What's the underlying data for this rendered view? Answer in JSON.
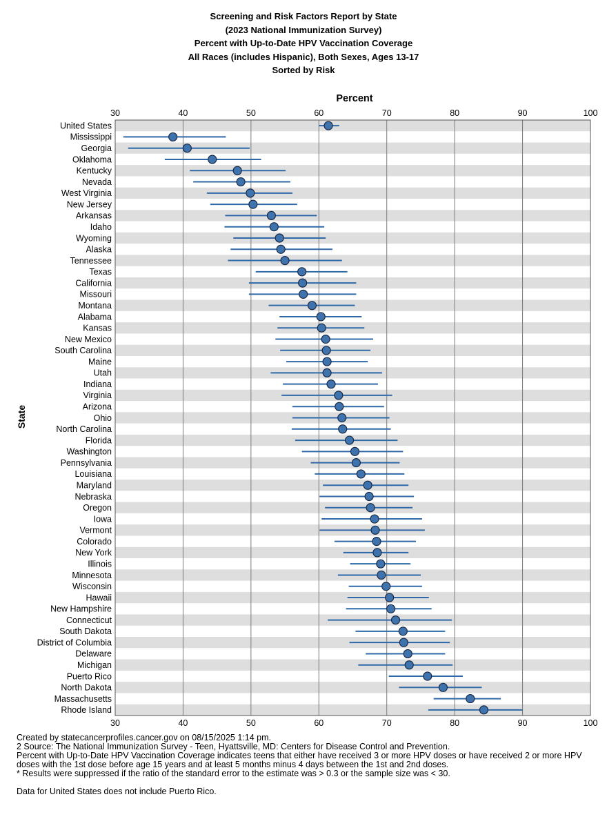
{
  "title_lines": [
    "Screening and Risk Factors Report by State",
    "(2023 National Immunization Survey)",
    "Percent with Up-to-Date HPV Vaccination Coverage",
    "All Races (includes Hispanic), Both Sexes, Ages 13-17",
    "Sorted by Risk"
  ],
  "chart_data": {
    "type": "scatter",
    "title": "Screening and Risk Factors Report by State",
    "xlabel": "Percent",
    "ylabel": "State",
    "xlim": [
      30,
      100
    ],
    "xticks": [
      30,
      40,
      50,
      60,
      70,
      80,
      90,
      100
    ],
    "grid": true,
    "point_color": "#3f73ad",
    "line_color": "#2f68a8",
    "band_color": "#dedede",
    "points": [
      {
        "label": "United States",
        "value": 61.4,
        "low": 60.0,
        "high": 63.0
      },
      {
        "label": "Mississippi",
        "value": 38.5,
        "low": 31.2,
        "high": 46.3
      },
      {
        "label": "Georgia",
        "value": 40.6,
        "low": 31.9,
        "high": 49.8
      },
      {
        "label": "Oklahoma",
        "value": 44.3,
        "low": 37.3,
        "high": 51.5
      },
      {
        "label": "Kentucky",
        "value": 48.0,
        "low": 41.0,
        "high": 55.1
      },
      {
        "label": "Nevada",
        "value": 48.5,
        "low": 41.5,
        "high": 55.8
      },
      {
        "label": "West Virginia",
        "value": 49.9,
        "low": 43.5,
        "high": 56.1
      },
      {
        "label": "New Jersey",
        "value": 50.3,
        "low": 44.0,
        "high": 56.8
      },
      {
        "label": "Arkansas",
        "value": 53.0,
        "low": 46.2,
        "high": 59.7
      },
      {
        "label": "Idaho",
        "value": 53.4,
        "low": 46.1,
        "high": 60.8
      },
      {
        "label": "Wyoming",
        "value": 54.2,
        "low": 47.4,
        "high": 61.0
      },
      {
        "label": "Alaska",
        "value": 54.4,
        "low": 47.0,
        "high": 62.0
      },
      {
        "label": "Tennessee",
        "value": 55.0,
        "low": 46.6,
        "high": 63.4
      },
      {
        "label": "Texas",
        "value": 57.5,
        "low": 50.7,
        "high": 64.2
      },
      {
        "label": "California",
        "value": 57.6,
        "low": 49.7,
        "high": 65.5
      },
      {
        "label": "Missouri",
        "value": 57.7,
        "low": 49.7,
        "high": 65.5
      },
      {
        "label": "Montana",
        "value": 59.0,
        "low": 52.6,
        "high": 65.3
      },
      {
        "label": "Alabama",
        "value": 60.3,
        "low": 54.2,
        "high": 66.3
      },
      {
        "label": "Kansas",
        "value": 60.4,
        "low": 53.9,
        "high": 66.7
      },
      {
        "label": "New Mexico",
        "value": 61.0,
        "low": 53.6,
        "high": 68.0
      },
      {
        "label": "South Carolina",
        "value": 61.1,
        "low": 54.3,
        "high": 67.6
      },
      {
        "label": "Maine",
        "value": 61.2,
        "low": 55.2,
        "high": 67.2
      },
      {
        "label": "Utah",
        "value": 61.2,
        "low": 52.9,
        "high": 69.3
      },
      {
        "label": "Indiana",
        "value": 61.8,
        "low": 54.7,
        "high": 68.7
      },
      {
        "label": "Virginia",
        "value": 62.9,
        "low": 54.5,
        "high": 70.8
      },
      {
        "label": "Arizona",
        "value": 63.0,
        "low": 56.1,
        "high": 69.6
      },
      {
        "label": "Ohio",
        "value": 63.4,
        "low": 56.1,
        "high": 70.4
      },
      {
        "label": "North Carolina",
        "value": 63.5,
        "low": 56.0,
        "high": 70.6
      },
      {
        "label": "Florida",
        "value": 64.5,
        "low": 56.5,
        "high": 71.6
      },
      {
        "label": "Washington",
        "value": 65.3,
        "low": 57.5,
        "high": 72.4
      },
      {
        "label": "Pennsylvania",
        "value": 65.5,
        "low": 58.8,
        "high": 71.9
      },
      {
        "label": "Louisiana",
        "value": 66.2,
        "low": 59.4,
        "high": 72.6
      },
      {
        "label": "Maryland",
        "value": 67.2,
        "low": 60.6,
        "high": 73.2
      },
      {
        "label": "Nebraska",
        "value": 67.4,
        "low": 60.1,
        "high": 74.0
      },
      {
        "label": "Oregon",
        "value": 67.6,
        "low": 60.9,
        "high": 73.8
      },
      {
        "label": "Iowa",
        "value": 68.2,
        "low": 60.4,
        "high": 75.2
      },
      {
        "label": "Vermont",
        "value": 68.3,
        "low": 60.1,
        "high": 75.6
      },
      {
        "label": "Colorado",
        "value": 68.5,
        "low": 62.3,
        "high": 74.3
      },
      {
        "label": "New York",
        "value": 68.6,
        "low": 63.6,
        "high": 73.2
      },
      {
        "label": "Illinois",
        "value": 69.1,
        "low": 64.6,
        "high": 73.5
      },
      {
        "label": "Minnesota",
        "value": 69.2,
        "low": 62.8,
        "high": 75.0
      },
      {
        "label": "Wisconsin",
        "value": 69.9,
        "low": 64.4,
        "high": 75.2
      },
      {
        "label": "Hawaii",
        "value": 70.4,
        "low": 64.2,
        "high": 76.2
      },
      {
        "label": "New Hampshire",
        "value": 70.6,
        "low": 64.0,
        "high": 76.6
      },
      {
        "label": "Connecticut",
        "value": 71.3,
        "low": 61.3,
        "high": 79.6
      },
      {
        "label": "South Dakota",
        "value": 72.4,
        "low": 65.4,
        "high": 78.6
      },
      {
        "label": "District of Columbia",
        "value": 72.5,
        "low": 64.5,
        "high": 79.3
      },
      {
        "label": "Delaware",
        "value": 73.1,
        "low": 66.9,
        "high": 78.6
      },
      {
        "label": "Michigan",
        "value": 73.3,
        "low": 65.8,
        "high": 79.7
      },
      {
        "label": "Puerto Rico",
        "value": 76.0,
        "low": 70.3,
        "high": 81.2
      },
      {
        "label": "North Dakota",
        "value": 78.3,
        "low": 71.8,
        "high": 84.0
      },
      {
        "label": "Massachusetts",
        "value": 82.3,
        "low": 76.9,
        "high": 86.8
      },
      {
        "label": "Rhode Island",
        "value": 84.3,
        "low": 76.1,
        "high": 90.0
      }
    ]
  },
  "footer": {
    "created": "Created by statecancerprofiles.cancer.gov on 08/15/2025 1:14 pm.",
    "source": "2 Source: The  National Immunization Survey - Teen, Hyattsville, MD: Centers for Disease Control and Prevention.",
    "definition": "Percent with Up-to-Date HPV Vaccination Coverage indicates teens that either have received 3 or more HPV doses or have received 2 or more HPV doses with the 1st dose before age 15 years and at least 5 months minus 4 days between the 1st and 2nd doses.",
    "suppression": "* Results were suppressed if the ratio of the standard error to the estimate was > 0.3 or the sample size was < 30.",
    "us_note": "Data for United States does not include Puerto Rico."
  }
}
